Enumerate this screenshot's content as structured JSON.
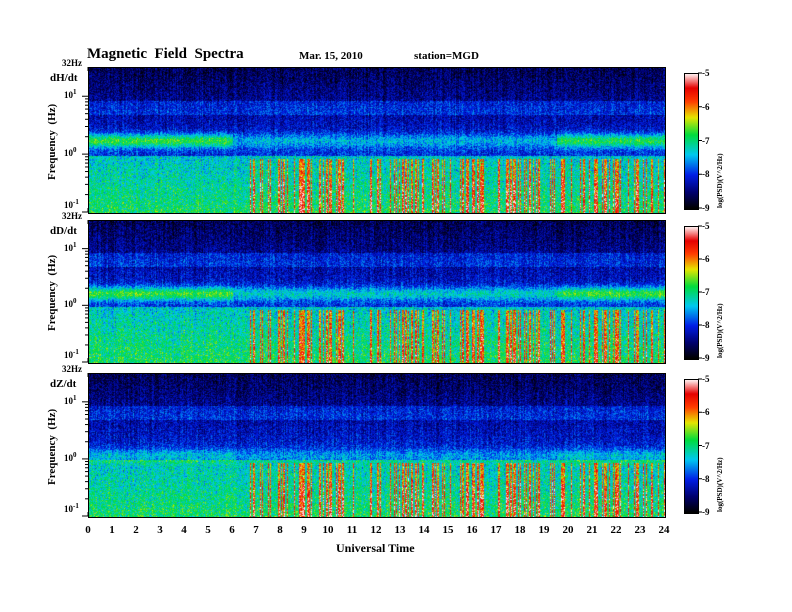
{
  "header": {
    "title": "Magnetic  Field  Spectra",
    "date": "Mar. 15, 2010",
    "station": "station=MGD"
  },
  "chart_data": {
    "type": "heatmap",
    "title": "Magnetic Field Spectra",
    "xlabel": "Universal Time",
    "ylabel": "Frequency  (Hz)",
    "xlim": [
      0,
      24
    ],
    "ylim_hz": [
      0.1,
      32
    ],
    "yscale": "log",
    "x_ticks": [
      "0",
      "1",
      "2",
      "3",
      "4",
      "5",
      "6",
      "7",
      "8",
      "9",
      "10",
      "11",
      "12",
      "13",
      "14",
      "15",
      "16",
      "17",
      "18",
      "19",
      "20",
      "21",
      "22",
      "23",
      "24"
    ],
    "y_tick_top": "32Hz",
    "y_ticks": [
      {
        "base": "10",
        "exp": "1"
      },
      {
        "base": "10",
        "exp": "0"
      },
      {
        "base": "10",
        "exp": "-1"
      }
    ],
    "colorbar": {
      "label": "log(PSD)(V^2/Hz)",
      "ticks": [
        "-5",
        "-6",
        "-7",
        "-8",
        "-9"
      ],
      "range": [
        -9,
        -5
      ],
      "colormap": "rainbow"
    },
    "panels": [
      {
        "component": "dH/dt",
        "band_hz": 1.8,
        "band_strength": [
          0.75,
          0.35,
          0.7
        ],
        "striation_start_ut": 6.5
      },
      {
        "component": "dD/dt",
        "band_hz": 1.7,
        "band_strength": [
          0.75,
          0.45,
          0.75
        ],
        "striation_start_ut": 6.5
      },
      {
        "component": "dZ/dt",
        "band_hz": 1.2,
        "band_strength": [
          0.35,
          0.25,
          0.35
        ],
        "striation_start_ut": 6.5
      }
    ]
  }
}
